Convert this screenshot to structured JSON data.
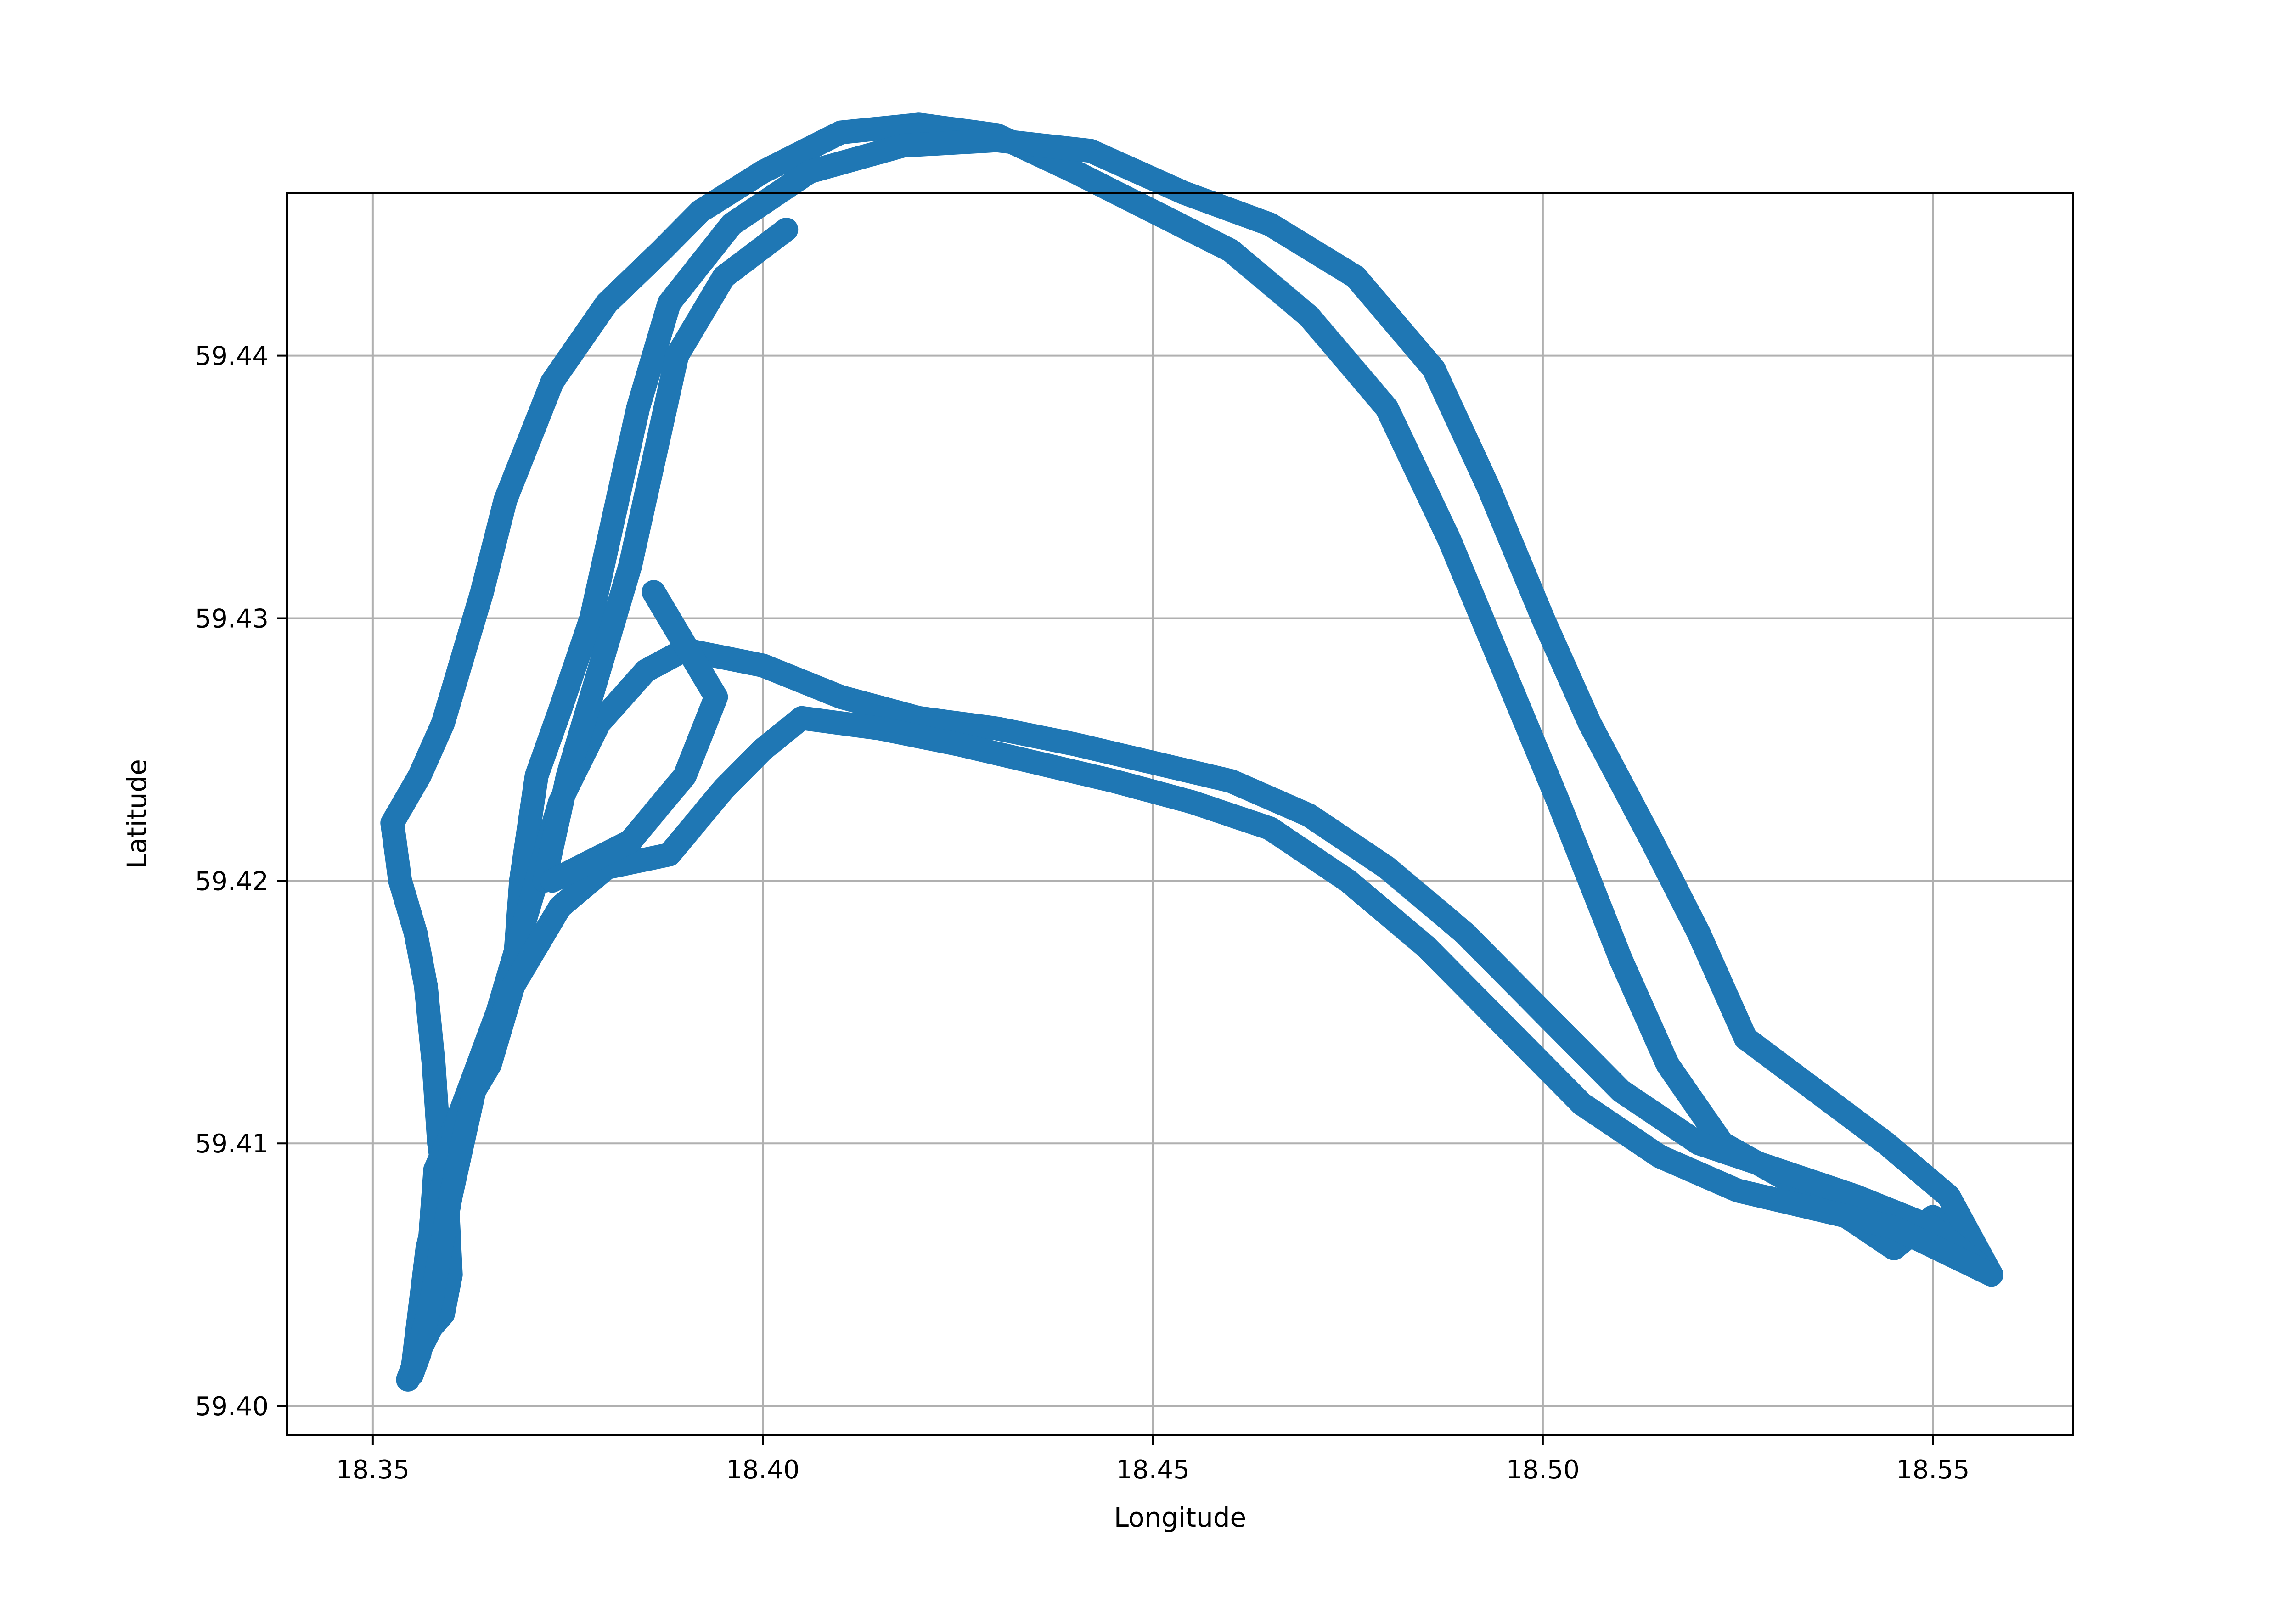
{
  "chart_data": {
    "type": "line",
    "title": "",
    "xlabel": "Longitude",
    "ylabel": "Latitude",
    "xlim": [
      18.339,
      18.568
    ],
    "ylim": [
      59.3989,
      59.4462
    ],
    "grid": true,
    "legend": "none",
    "x_ticks": [
      {
        "value": 18.35,
        "label": "18.35"
      },
      {
        "value": 18.4,
        "label": "18.40"
      },
      {
        "value": 18.45,
        "label": "18.45"
      },
      {
        "value": 18.5,
        "label": "18.50"
      },
      {
        "value": 18.55,
        "label": "18.55"
      }
    ],
    "y_ticks": [
      {
        "value": 59.4,
        "label": "59.40"
      },
      {
        "value": 59.41,
        "label": "59.41"
      },
      {
        "value": 59.42,
        "label": "59.42"
      },
      {
        "value": 59.43,
        "label": "59.43"
      },
      {
        "value": 59.44,
        "label": "59.44"
      }
    ],
    "colors": {
      "series": "#1f77b4",
      "grid": "#b0b0b0",
      "frame": "#000000"
    },
    "series": [
      {
        "points": [
          [
            18.3545,
            59.401
          ],
          [
            18.3558,
            59.402
          ],
          [
            18.3575,
            59.403
          ],
          [
            18.359,
            59.4035
          ],
          [
            18.36,
            59.405
          ],
          [
            18.3595,
            59.408
          ],
          [
            18.3585,
            59.41
          ],
          [
            18.3578,
            59.413
          ],
          [
            18.3568,
            59.416
          ],
          [
            18.3555,
            59.418
          ],
          [
            18.3535,
            59.42
          ],
          [
            18.3525,
            59.4222
          ],
          [
            18.356,
            59.424
          ],
          [
            18.359,
            59.426
          ],
          [
            18.362,
            59.429
          ],
          [
            18.364,
            59.431
          ],
          [
            18.367,
            59.4345
          ],
          [
            18.373,
            59.439
          ],
          [
            18.38,
            59.442
          ],
          [
            18.387,
            59.444
          ],
          [
            18.392,
            59.4455
          ],
          [
            18.4,
            59.447
          ],
          [
            18.41,
            59.4485
          ],
          [
            18.42,
            59.4488
          ],
          [
            18.43,
            59.4484
          ],
          [
            18.44,
            59.447
          ],
          [
            18.45,
            59.4455
          ],
          [
            18.46,
            59.444
          ],
          [
            18.47,
            59.4415
          ],
          [
            18.48,
            59.438
          ],
          [
            18.488,
            59.433
          ],
          [
            18.495,
            59.428
          ],
          [
            18.502,
            59.423
          ],
          [
            18.51,
            59.417
          ],
          [
            18.516,
            59.413
          ],
          [
            18.523,
            59.41
          ],
          [
            18.532,
            59.4085
          ],
          [
            18.539,
            59.4072
          ],
          [
            18.545,
            59.406
          ],
          [
            18.55,
            59.4072
          ],
          [
            18.554,
            59.4065
          ],
          [
            18.5575,
            59.405
          ]
        ]
      },
      {
        "points": [
          [
            18.5575,
            59.405
          ],
          [
            18.552,
            59.408
          ],
          [
            18.544,
            59.41
          ],
          [
            18.535,
            59.412
          ],
          [
            18.526,
            59.414
          ],
          [
            18.52,
            59.418
          ],
          [
            18.514,
            59.4215
          ],
          [
            18.506,
            59.426
          ],
          [
            18.5,
            59.43
          ],
          [
            18.493,
            59.435
          ],
          [
            18.486,
            59.4395
          ],
          [
            18.476,
            59.443
          ],
          [
            18.465,
            59.445
          ],
          [
            18.454,
            59.4462
          ],
          [
            18.442,
            59.4478
          ],
          [
            18.43,
            59.4482
          ],
          [
            18.418,
            59.448
          ],
          [
            18.406,
            59.447
          ],
          [
            18.396,
            59.445
          ],
          [
            18.388,
            59.442
          ],
          [
            18.384,
            59.438
          ],
          [
            18.381,
            59.434
          ],
          [
            18.378,
            59.43
          ],
          [
            18.374,
            59.4265
          ],
          [
            18.371,
            59.424
          ],
          [
            18.369,
            59.42
          ],
          [
            18.368,
            59.416
          ],
          [
            18.365,
            59.413
          ],
          [
            18.361,
            59.411
          ],
          [
            18.358,
            59.409
          ],
          [
            18.357,
            59.405
          ],
          [
            18.356,
            59.402
          ],
          [
            18.355,
            59.4012
          ]
        ]
      },
      {
        "points": [
          [
            18.355,
            59.4012
          ],
          [
            18.357,
            59.406
          ],
          [
            18.361,
            59.411
          ],
          [
            18.366,
            59.415
          ],
          [
            18.37,
            59.419
          ],
          [
            18.374,
            59.423
          ],
          [
            18.379,
            59.426
          ],
          [
            18.385,
            59.428
          ],
          [
            18.39,
            59.4288
          ],
          [
            18.4,
            59.4282
          ],
          [
            18.41,
            59.427
          ],
          [
            18.42,
            59.4262
          ],
          [
            18.43,
            59.4258
          ],
          [
            18.44,
            59.4252
          ],
          [
            18.45,
            59.4245
          ],
          [
            18.46,
            59.4238
          ],
          [
            18.47,
            59.4225
          ],
          [
            18.48,
            59.4205
          ],
          [
            18.49,
            59.418
          ],
          [
            18.5,
            59.415
          ],
          [
            18.51,
            59.412
          ],
          [
            18.52,
            59.41
          ],
          [
            18.53,
            59.409
          ],
          [
            18.54,
            59.408
          ],
          [
            18.55,
            59.4068
          ],
          [
            18.5575,
            59.405
          ]
        ]
      },
      {
        "points": [
          [
            18.355,
            59.4012
          ],
          [
            18.3575,
            59.404
          ],
          [
            18.36,
            59.408
          ],
          [
            18.363,
            59.412
          ],
          [
            18.368,
            59.416
          ],
          [
            18.374,
            59.419
          ],
          [
            18.38,
            59.4205
          ],
          [
            18.388,
            59.421
          ],
          [
            18.395,
            59.4235
          ],
          [
            18.4,
            59.425
          ],
          [
            18.405,
            59.4262
          ],
          [
            18.415,
            59.4258
          ],
          [
            18.425,
            59.4252
          ],
          [
            18.435,
            59.4245
          ],
          [
            18.445,
            59.4238
          ],
          [
            18.455,
            59.423
          ],
          [
            18.465,
            59.422
          ],
          [
            18.475,
            59.42
          ],
          [
            18.485,
            59.4175
          ],
          [
            18.495,
            59.4145
          ],
          [
            18.505,
            59.4115
          ],
          [
            18.515,
            59.4095
          ],
          [
            18.525,
            59.4082
          ],
          [
            18.535,
            59.4075
          ],
          [
            18.545,
            59.4068
          ],
          [
            18.5575,
            59.405
          ]
        ]
      },
      {
        "points": [
          [
            18.372,
            59.42
          ],
          [
            18.375,
            59.424
          ],
          [
            18.379,
            59.428
          ],
          [
            18.383,
            59.432
          ],
          [
            18.386,
            59.436
          ],
          [
            18.389,
            59.44
          ],
          [
            18.395,
            59.443
          ],
          [
            18.403,
            59.4448
          ]
        ]
      },
      {
        "points": [
          [
            18.373,
            59.42
          ],
          [
            18.383,
            59.4215
          ],
          [
            18.39,
            59.424
          ],
          [
            18.394,
            59.427
          ],
          [
            18.39,
            59.429
          ],
          [
            18.386,
            59.431
          ]
        ]
      }
    ]
  }
}
